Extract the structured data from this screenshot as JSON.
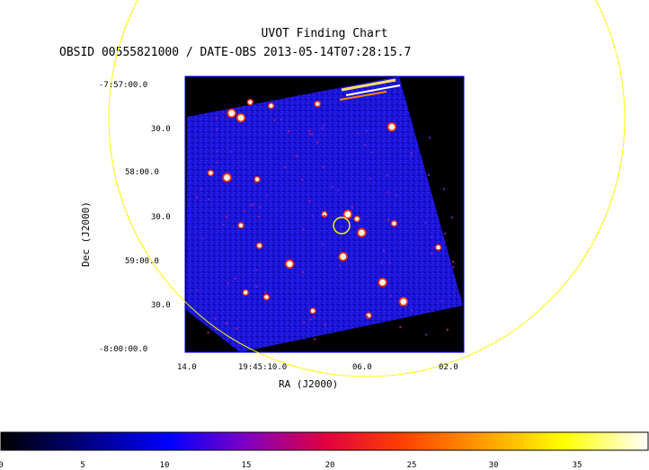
{
  "header": {
    "title": "UVOT Finding Chart",
    "subtitle": "OBSID 00555821000 / DATE-OBS 2013-05-14T07:28:15.7"
  },
  "axes": {
    "dec_label": "Dec (J2000)",
    "ra_label": "RA (J2000)",
    "dec_ticks": [
      "-7:57:00.0",
      "30.0",
      "58:00.0",
      "30.0",
      "59:00.0",
      "30.0",
      "-8:00:00.0"
    ],
    "ra_ticks": [
      "14.0",
      "19:45:10.0",
      "06.0",
      "02.0"
    ]
  },
  "colorbar": {
    "ticks": [
      "0",
      "5",
      "10",
      "15",
      "20",
      "25",
      "30",
      "35"
    ],
    "min": 0,
    "max": 39
  },
  "colors": {
    "image_background": "#1a14d8",
    "overlay_circle": "#ffff00",
    "frame": "#0000ff"
  },
  "image": {
    "rotation_deg": 12,
    "stars": [
      {
        "ra": 12.0,
        "dec": 0.4,
        "size": 2
      },
      {
        "ra": 11.6,
        "dec": 0.45,
        "size": 2
      },
      {
        "ra": 11.2,
        "dec": 0.28,
        "size": 1
      },
      {
        "ra": 10.3,
        "dec": 0.32,
        "size": 1
      },
      {
        "ra": 8.3,
        "dec": 0.3,
        "size": 1
      },
      {
        "ra": 5.1,
        "dec": 0.55,
        "size": 2
      },
      {
        "ra": 12.9,
        "dec": 1.05,
        "size": 1
      },
      {
        "ra": 12.2,
        "dec": 1.1,
        "size": 2
      },
      {
        "ra": 10.9,
        "dec": 1.12,
        "size": 1
      },
      {
        "ra": 8.0,
        "dec": 1.5,
        "size": 1
      },
      {
        "ra": 7.0,
        "dec": 1.5,
        "size": 2
      },
      {
        "ra": 6.6,
        "dec": 1.55,
        "size": 1
      },
      {
        "ra": 6.4,
        "dec": 1.7,
        "size": 2
      },
      {
        "ra": 5.0,
        "dec": 1.6,
        "size": 1
      },
      {
        "ra": 3.1,
        "dec": 1.86,
        "size": 1
      },
      {
        "ra": 11.6,
        "dec": 1.62,
        "size": 1
      },
      {
        "ra": 10.8,
        "dec": 1.84,
        "size": 1
      },
      {
        "ra": 9.5,
        "dec": 2.04,
        "size": 2
      },
      {
        "ra": 7.2,
        "dec": 1.96,
        "size": 2
      },
      {
        "ra": 5.5,
        "dec": 2.24,
        "size": 2
      },
      {
        "ra": 4.6,
        "dec": 2.45,
        "size": 2
      },
      {
        "ra": 11.4,
        "dec": 2.35,
        "size": 1
      },
      {
        "ra": 10.5,
        "dec": 2.4,
        "size": 1
      },
      {
        "ra": 8.5,
        "dec": 2.55,
        "size": 1
      },
      {
        "ra": 6.1,
        "dec": 2.6,
        "size": 1
      }
    ]
  }
}
